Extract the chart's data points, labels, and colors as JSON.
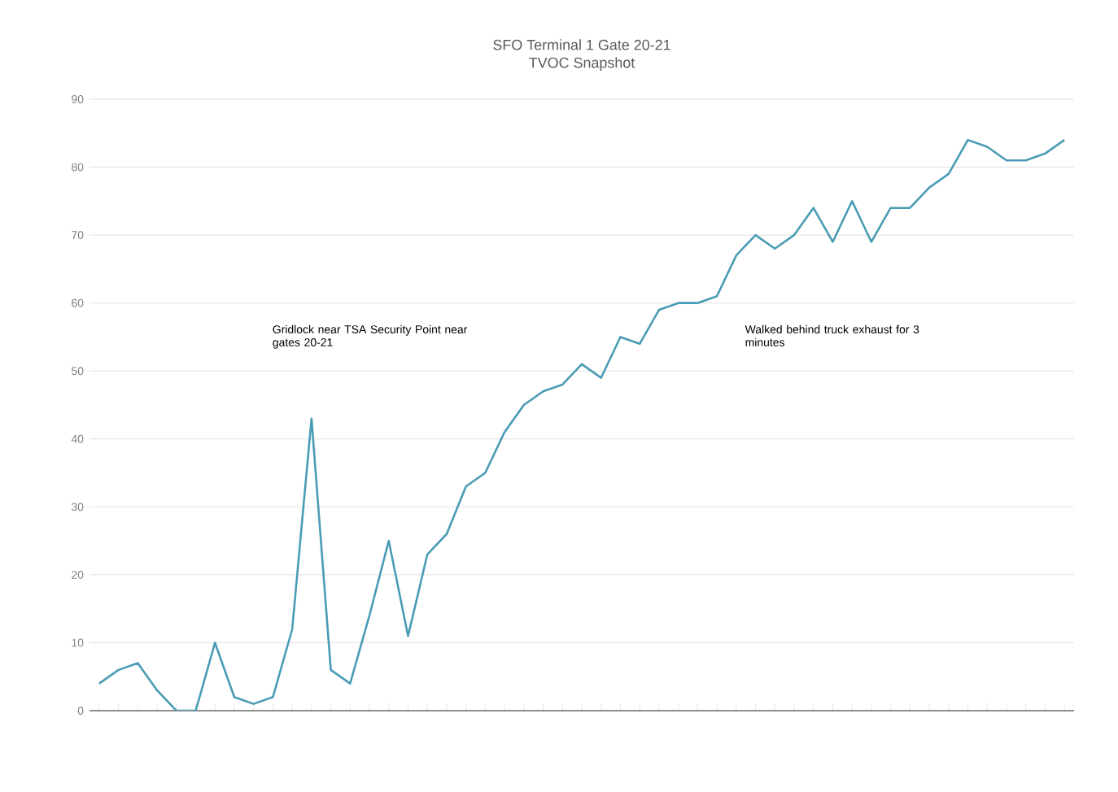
{
  "chart_data": {
    "type": "line",
    "title": "SFO Terminal 1 Gate 20-21",
    "subtitle": "TVOC Snapshot",
    "categories": [
      null,
      null,
      null,
      null,
      null,
      null,
      null,
      null,
      null,
      null,
      null,
      null,
      null,
      null,
      null,
      null,
      null,
      null,
      null,
      null,
      null,
      null,
      null,
      null,
      null,
      null,
      null,
      null,
      null,
      null,
      null,
      null,
      null,
      null,
      null,
      null,
      null,
      null,
      null,
      null,
      null,
      null,
      null,
      null,
      null,
      null,
      null,
      null,
      null,
      null,
      null
    ],
    "values": [
      4,
      6,
      7,
      3,
      0,
      0,
      10,
      2,
      1,
      2,
      12,
      43,
      6,
      4,
      14,
      25,
      11,
      23,
      26,
      33,
      35,
      41,
      45,
      47,
      48,
      51,
      49,
      55,
      54,
      59,
      60,
      60,
      61,
      67,
      70,
      68,
      70,
      74,
      69,
      75,
      69,
      74,
      74,
      77,
      79,
      84,
      83,
      81,
      81,
      82,
      84
    ],
    "color": "#4a9bb5",
    "ylim": [
      0,
      90
    ],
    "yticks": [
      0,
      10,
      20,
      30,
      40,
      50,
      60,
      70,
      80,
      90
    ],
    "grid": "y",
    "annotations": [
      "Gridlock near TSA Security Point near gates 20-21",
      "Walked behind truck exhaust for 3 minutes"
    ]
  }
}
